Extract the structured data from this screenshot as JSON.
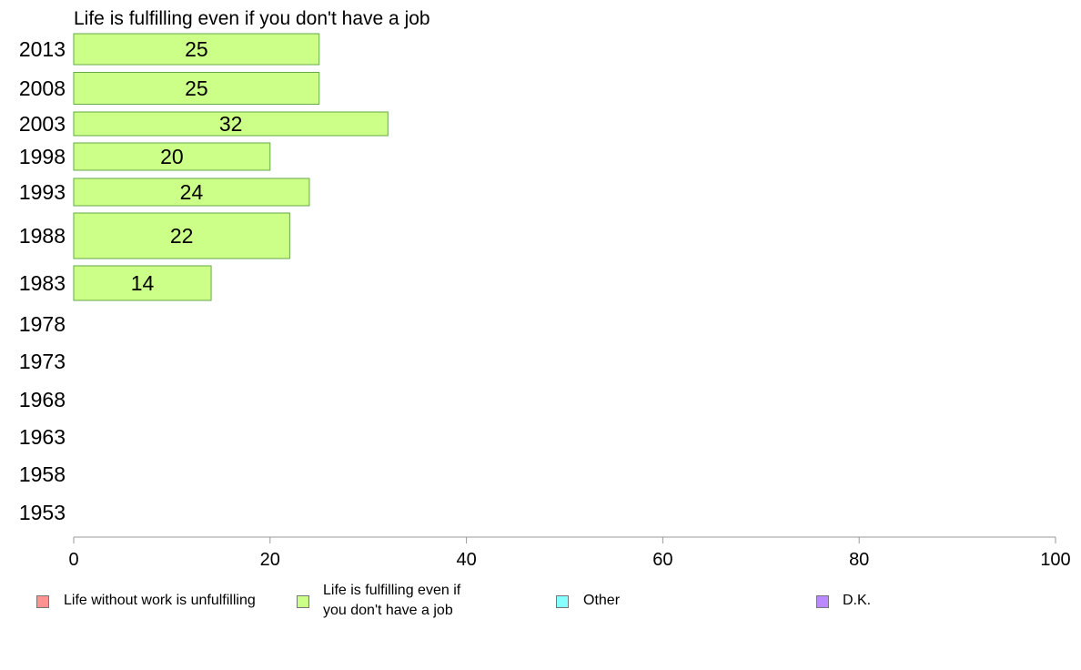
{
  "chart_data": {
    "type": "bar",
    "orientation": "horizontal",
    "title": "Life is fulfilling even if you don't have a job",
    "categories": [
      "2013",
      "2008",
      "2003",
      "1998",
      "1993",
      "1988",
      "1983",
      "1978",
      "1973",
      "1968",
      "1963",
      "1958",
      "1953"
    ],
    "series": [
      {
        "name": "Life is fulfilling even if you don't have a job",
        "color": "#ccff88",
        "stroke": "#66aa44",
        "values": [
          25,
          25,
          32,
          20,
          24,
          22,
          14,
          null,
          null,
          null,
          null,
          null,
          null
        ]
      }
    ],
    "xlim": [
      0,
      100
    ],
    "xticks": [
      "0",
      "20",
      "40",
      "60",
      "80",
      "100"
    ],
    "xlabel": "",
    "ylabel": "",
    "grid": false,
    "legend_position": "bottom"
  },
  "legend": {
    "items": [
      {
        "label": "Life without work is unfulfilling",
        "color": "#ff9191"
      },
      {
        "label": "Life is fulfilling even if\nyou don't have a job",
        "color": "#ccff88"
      },
      {
        "label": "Other",
        "color": "#88ffff"
      },
      {
        "label": "D.K.",
        "color": "#bb88ff"
      }
    ]
  }
}
